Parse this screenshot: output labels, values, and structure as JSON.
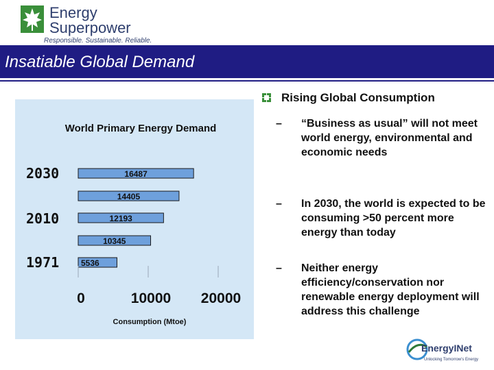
{
  "header": {
    "logo_line1": "Energy",
    "logo_line2": "Superpower",
    "logo_tagline": "Responsible. Sustainable. Reliable.",
    "title": "Insatiable Global Demand"
  },
  "colors": {
    "title_bar": "#1f1c83",
    "chart_bg": "#d4e7f6",
    "bar_fill": "#6ea0dc",
    "logo_green": "#3a8f3a"
  },
  "chart_data": {
    "type": "bar",
    "orientation": "horizontal",
    "title": "World Primary Energy Demand",
    "xlabel": "Consumption (Mtoe)",
    "ylabel": "",
    "xlim": [
      0,
      20000
    ],
    "x_ticks": [
      "0",
      "10000",
      "20000"
    ],
    "groups": [
      {
        "label": "2030",
        "bars": [
          {
            "value": 16487,
            "label": "16487"
          }
        ]
      },
      {
        "label": "2010",
        "bars": [
          {
            "value": 14405,
            "label": "14405"
          },
          {
            "value": 12193,
            "label": "12193"
          }
        ]
      },
      {
        "label": "1971",
        "bars": [
          {
            "value": 10345,
            "label": "10345"
          },
          {
            "value": 5536,
            "label": "5536"
          }
        ]
      }
    ]
  },
  "content": {
    "main_bullet": "Rising Global Consumption",
    "sub_bullets": [
      "“Business as usual” will not meet world energy, environmental and economic needs",
      "In 2030, the world is expected to be consuming >50 percent more energy than today",
      "Neither energy efficiency/conservation nor renewable energy deployment will address this challenge"
    ],
    "dash": "–"
  },
  "footer": {
    "brand": "EnergyINet",
    "tagline": "Unlocking Tomorrow's Energy"
  }
}
